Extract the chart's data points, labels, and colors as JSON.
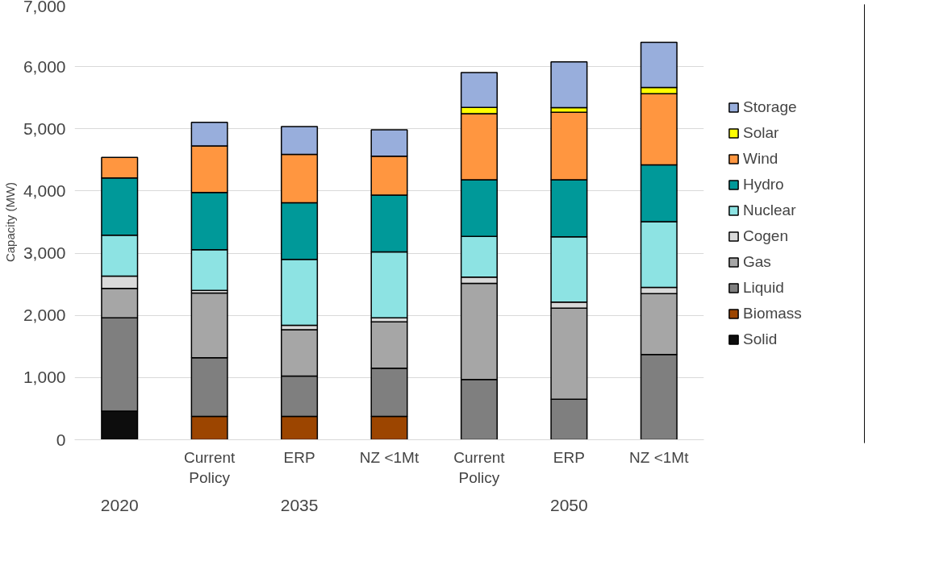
{
  "chart_data": {
    "type": "bar",
    "stacked": true,
    "ylabel": "Capacity (MW)",
    "categories": [
      null,
      "Current\nPolicy",
      "ERP",
      "NZ <1Mt",
      "Current\nPolicy",
      "ERP",
      "NZ <1Mt"
    ],
    "annotations": [
      "2020",
      "2035",
      "2050"
    ],
    "series": [
      {
        "name": "Solid",
        "color": "#0d0d0d",
        "values": [
          460,
          null,
          null,
          null,
          null,
          null,
          null
        ]
      },
      {
        "name": "Biomass",
        "color": "#9c4500",
        "values": [
          null,
          375,
          375,
          375,
          null,
          null,
          null
        ]
      },
      {
        "name": "Liquid",
        "color": "#7f7f7f",
        "values": [
          1500,
          945,
          650,
          775,
          970,
          650,
          1370
        ]
      },
      {
        "name": "Gas",
        "color": "#a6a6a6",
        "values": [
          475,
          1040,
          745,
          745,
          1545,
          1465,
          980
        ]
      },
      {
        "name": "Cogen",
        "color": "#d9d9d9",
        "values": [
          195,
          40,
          70,
          65,
          100,
          100,
          100
        ]
      },
      {
        "name": "Nuclear",
        "color": "#8de3e3",
        "values": [
          660,
          655,
          1060,
          1060,
          655,
          1050,
          1055
        ]
      },
      {
        "name": "Hydro",
        "color": "#009999",
        "values": [
          920,
          920,
          910,
          915,
          910,
          915,
          915
        ]
      },
      {
        "name": "Wind",
        "color": "#ff9640",
        "values": [
          330,
          750,
          780,
          625,
          1065,
          1085,
          1145
        ]
      },
      {
        "name": "Solar",
        "color": "#ffff00",
        "values": [
          null,
          null,
          null,
          null,
          100,
          75,
          100
        ]
      },
      {
        "name": "Storage",
        "color": "#98aedc",
        "values": [
          null,
          380,
          445,
          425,
          560,
          735,
          725
        ]
      }
    ],
    "ylim": [
      0,
      7000
    ],
    "yticks": [
      0,
      {
        "value": 1000,
        "label": "1,000"
      },
      {
        "value": 2000,
        "label": "2,000"
      },
      {
        "value": 3000,
        "label": "3,000"
      },
      {
        "value": 4000,
        "label": "4,000"
      },
      {
        "value": 5000,
        "label": "5,000"
      },
      {
        "value": 6000,
        "label": "6,000"
      },
      {
        "value": 7000,
        "label": "7,000"
      }
    ],
    "grid": "y",
    "legend": "right"
  }
}
